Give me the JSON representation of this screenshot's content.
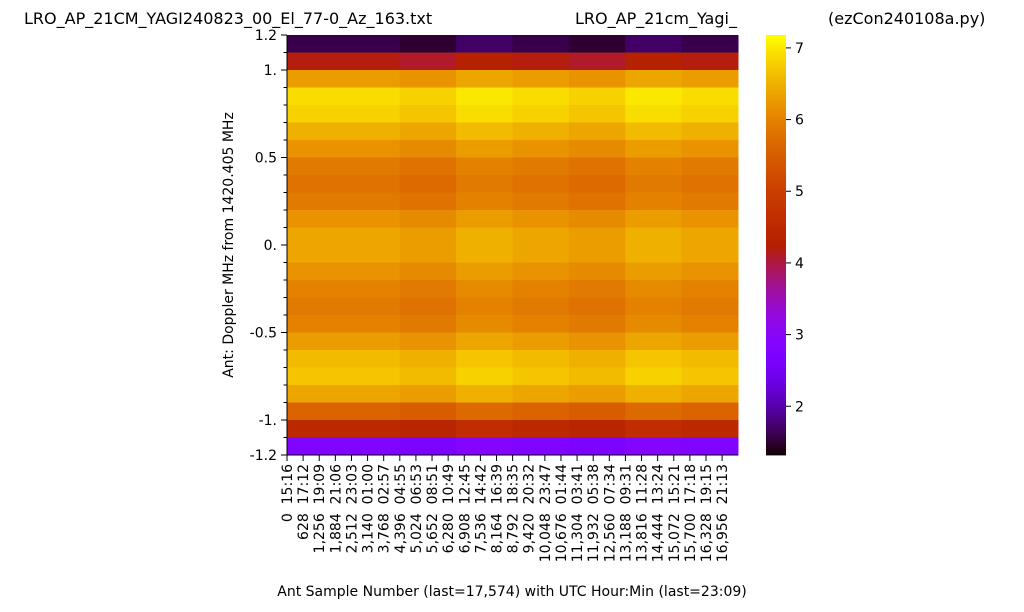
{
  "chart_data": {
    "type": "heatmap",
    "title_left": "LRO_AP_21CM_YAGI240823_00_El_77-0_Az_163.txt",
    "title_center": "LRO_AP_21cm_Yagi_",
    "title_right": "(ezCon240108a.py)",
    "xlabel": "Ant Sample Number (last=17,574) with UTC Hour:Min (last=23:09)",
    "ylabel": "Ant:  Doppler MHz from 1420.405 MHz",
    "colormap": "gnuplot",
    "xlim": [
      0,
      17575
    ],
    "xticks": [
      {
        "value": 0,
        "label": "0  15:16"
      },
      {
        "value": 628,
        "label": "628  17:12"
      },
      {
        "value": 1256,
        "label": "1,256  19:09"
      },
      {
        "value": 1884,
        "label": "1,884  21:06"
      },
      {
        "value": 2512,
        "label": "2,512  23:03"
      },
      {
        "value": 3140,
        "label": "3,140  01:00"
      },
      {
        "value": 3768,
        "label": "3,768  02:57"
      },
      {
        "value": 4396,
        "label": "4,396  04:55"
      },
      {
        "value": 5024,
        "label": "5,024  06:53"
      },
      {
        "value": 5652,
        "label": "5,652  08:51"
      },
      {
        "value": 6280,
        "label": "6,280  10:49"
      },
      {
        "value": 6908,
        "label": "6,908  12:45"
      },
      {
        "value": 7536,
        "label": "7,536  14:42"
      },
      {
        "value": 8164,
        "label": "8,164  16:39"
      },
      {
        "value": 8792,
        "label": "8,792  18:35"
      },
      {
        "value": 9420,
        "label": "9,420  20:32"
      },
      {
        "value": 10048,
        "label": "10,048  23:47"
      },
      {
        "value": 10676,
        "label": "10,676  01:44"
      },
      {
        "value": 11304,
        "label": "11,304  03:41"
      },
      {
        "value": 11932,
        "label": "11,932  05:38"
      },
      {
        "value": 12560,
        "label": "12,560  07:34"
      },
      {
        "value": 13188,
        "label": "13,188  09:31"
      },
      {
        "value": 13816,
        "label": "13,816  11:28"
      },
      {
        "value": 14444,
        "label": "14,444  13:24"
      },
      {
        "value": 15072,
        "label": "15,072  15:21"
      },
      {
        "value": 15700,
        "label": "15,700  17:18"
      },
      {
        "value": 16328,
        "label": "16,328  19:15"
      },
      {
        "value": 16956,
        "label": "16,956  21:13"
      }
    ],
    "ylim": [
      -1.2,
      1.2
    ],
    "yticks": [
      {
        "value": 1.2,
        "label": "1.2"
      },
      {
        "value": 1,
        "label": "1."
      },
      0.5,
      {
        "value": 0,
        "label": "0."
      },
      -0.5,
      {
        "value": -1,
        "label": "-1."
      },
      -1.2
    ],
    "yminorticks": [
      1.1,
      0.9,
      0.8,
      0.7,
      0.6,
      0.4,
      0.3,
      0.2,
      0.1,
      -0.1,
      -0.2,
      -0.3,
      -0.4,
      -0.6,
      -0.7,
      -0.8,
      -0.9,
      -1.1
    ],
    "clim": [
      1.32,
      7.18
    ],
    "cticks": [
      2,
      3,
      4,
      5,
      6,
      7
    ],
    "z": [
      [
        1.6,
        1.6,
        1.5,
        1.7,
        1.6,
        1.5,
        1.7,
        1.6
      ],
      [
        4.2,
        4.2,
        4.1,
        4.3,
        4.2,
        4.1,
        4.3,
        4.2
      ],
      [
        6.3,
        6.3,
        6.2,
        6.4,
        6.3,
        6.2,
        6.4,
        6.3
      ],
      [
        6.9,
        6.9,
        6.8,
        7.0,
        6.9,
        6.8,
        7.0,
        6.9
      ],
      [
        6.8,
        6.8,
        6.7,
        6.9,
        6.8,
        6.7,
        6.9,
        6.8
      ],
      [
        6.5,
        6.5,
        6.4,
        6.6,
        6.5,
        6.4,
        6.6,
        6.5
      ],
      [
        6.2,
        6.2,
        6.1,
        6.3,
        6.2,
        6.1,
        6.3,
        6.2
      ],
      [
        5.9,
        5.9,
        5.8,
        6.0,
        5.9,
        5.8,
        6.0,
        5.9
      ],
      [
        5.8,
        5.8,
        5.7,
        5.9,
        5.8,
        5.7,
        5.9,
        5.8
      ],
      [
        5.9,
        5.9,
        5.8,
        6.0,
        5.9,
        5.8,
        6.0,
        5.9
      ],
      [
        6.2,
        6.2,
        6.1,
        6.3,
        6.2,
        6.1,
        6.3,
        6.2
      ],
      [
        6.4,
        6.4,
        6.3,
        6.5,
        6.4,
        6.3,
        6.5,
        6.4
      ],
      [
        6.4,
        6.4,
        6.3,
        6.5,
        6.4,
        6.3,
        6.5,
        6.4
      ],
      [
        6.2,
        6.2,
        6.1,
        6.3,
        6.2,
        6.1,
        6.3,
        6.2
      ],
      [
        6.0,
        6.0,
        5.9,
        6.1,
        6.0,
        5.9,
        6.1,
        6.0
      ],
      [
        5.9,
        5.9,
        5.8,
        6.0,
        5.9,
        5.8,
        6.0,
        5.9
      ],
      [
        6.0,
        6.0,
        5.9,
        6.1,
        6.0,
        5.9,
        6.1,
        6.0
      ],
      [
        6.3,
        6.3,
        6.2,
        6.4,
        6.3,
        6.2,
        6.4,
        6.3
      ],
      [
        6.6,
        6.6,
        6.5,
        6.7,
        6.6,
        6.5,
        6.7,
        6.6
      ],
      [
        6.7,
        6.7,
        6.6,
        6.8,
        6.7,
        6.6,
        6.8,
        6.7
      ],
      [
        6.4,
        6.4,
        6.3,
        6.5,
        6.4,
        6.3,
        6.5,
        6.4
      ],
      [
        5.6,
        5.6,
        5.5,
        5.7,
        5.6,
        5.5,
        5.7,
        5.6
      ],
      [
        4.5,
        4.5,
        4.4,
        4.6,
        4.5,
        4.4,
        4.6,
        4.5
      ],
      [
        2.8,
        2.8,
        2.7,
        2.9,
        2.8,
        2.7,
        2.9,
        2.8
      ]
    ]
  }
}
